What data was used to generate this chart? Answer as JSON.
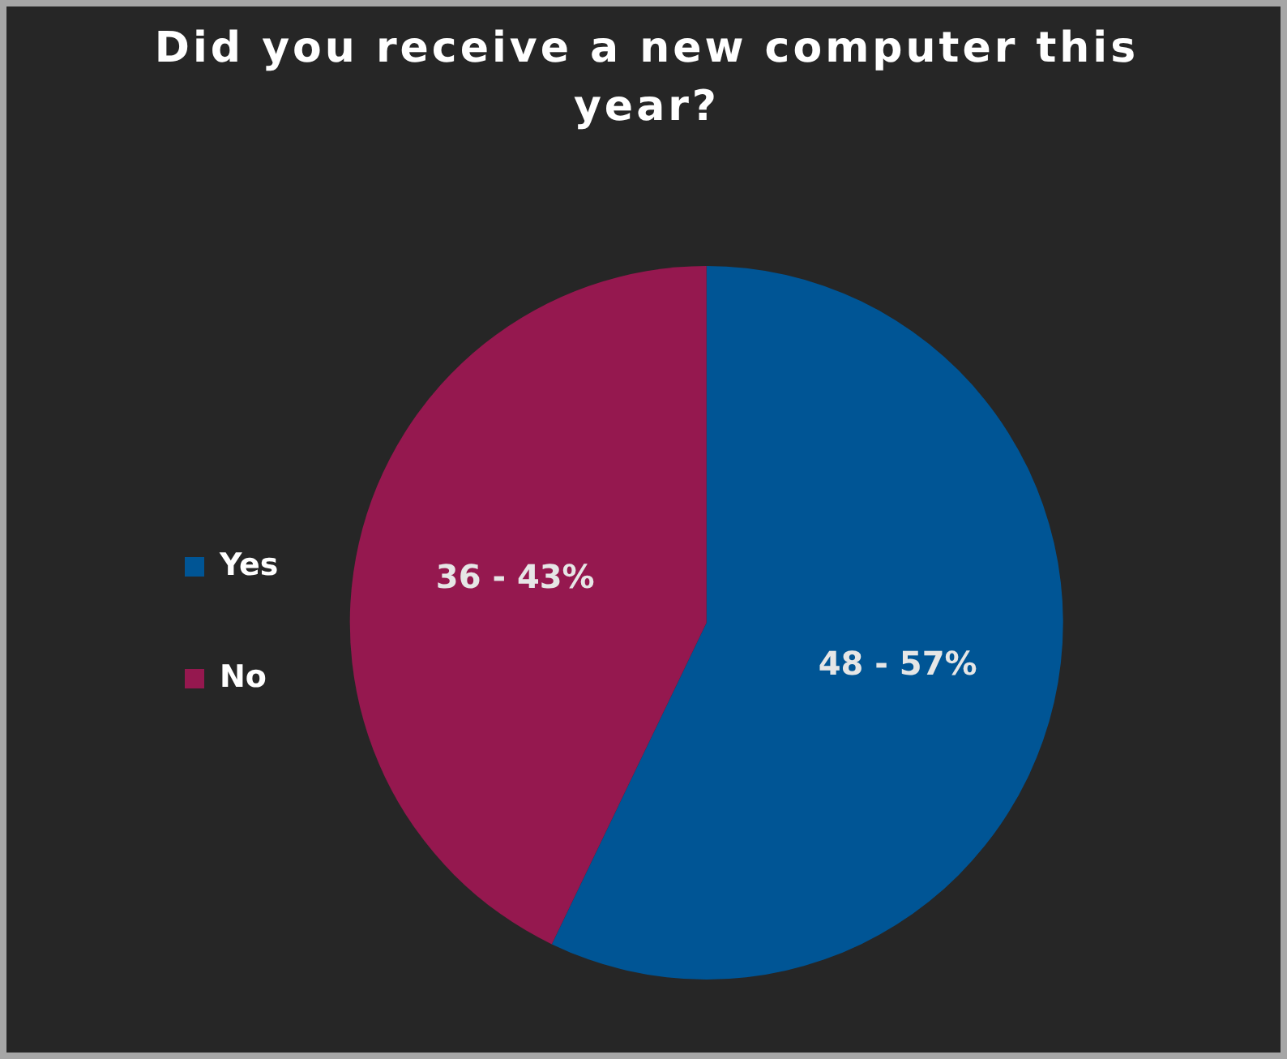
{
  "chart_data": {
    "type": "pie",
    "title": "Did you receive a new computer this year?",
    "categories": [
      "Yes",
      "No"
    ],
    "values": [
      48,
      36
    ],
    "value_labels": [
      "48 - 57%",
      "36 - 43%"
    ],
    "colors": [
      "#005595",
      "#95184f"
    ],
    "legend": "left"
  }
}
